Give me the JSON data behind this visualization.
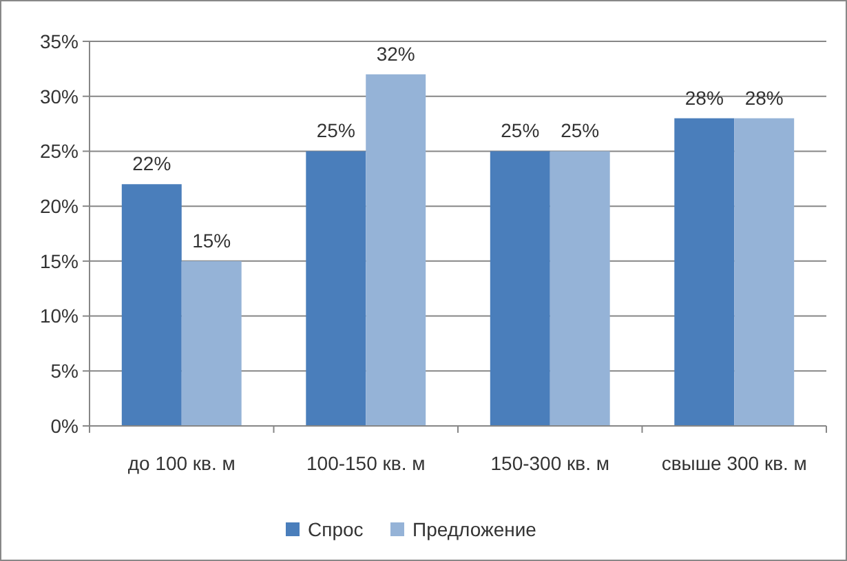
{
  "chart_data": {
    "type": "bar",
    "categories": [
      "до 100 кв. м",
      "100-150 кв. м",
      "150-300 кв. м",
      "свыше 300 кв. м"
    ],
    "series": [
      {
        "name": "Спрос",
        "color": "#4a7ebb",
        "values": [
          22,
          25,
          25,
          28
        ],
        "value_labels": [
          "22%",
          "25%",
          "25%",
          "28%"
        ]
      },
      {
        "name": "Предложение",
        "color": "#95b3d7",
        "values": [
          15,
          32,
          25,
          28
        ],
        "value_labels": [
          "15%",
          "32%",
          "25%",
          "28%"
        ]
      }
    ],
    "ylim": [
      0,
      35
    ],
    "yticks": [
      {
        "value": 0,
        "label": "0%"
      },
      {
        "value": 5,
        "label": "5%"
      },
      {
        "value": 10,
        "label": "10%"
      },
      {
        "value": 15,
        "label": "15%"
      },
      {
        "value": 20,
        "label": "20%"
      },
      {
        "value": 25,
        "label": "25%"
      },
      {
        "value": 30,
        "label": "30%"
      },
      {
        "value": 35,
        "label": "35%"
      }
    ],
    "grid": "y",
    "legend": "bottom"
  }
}
